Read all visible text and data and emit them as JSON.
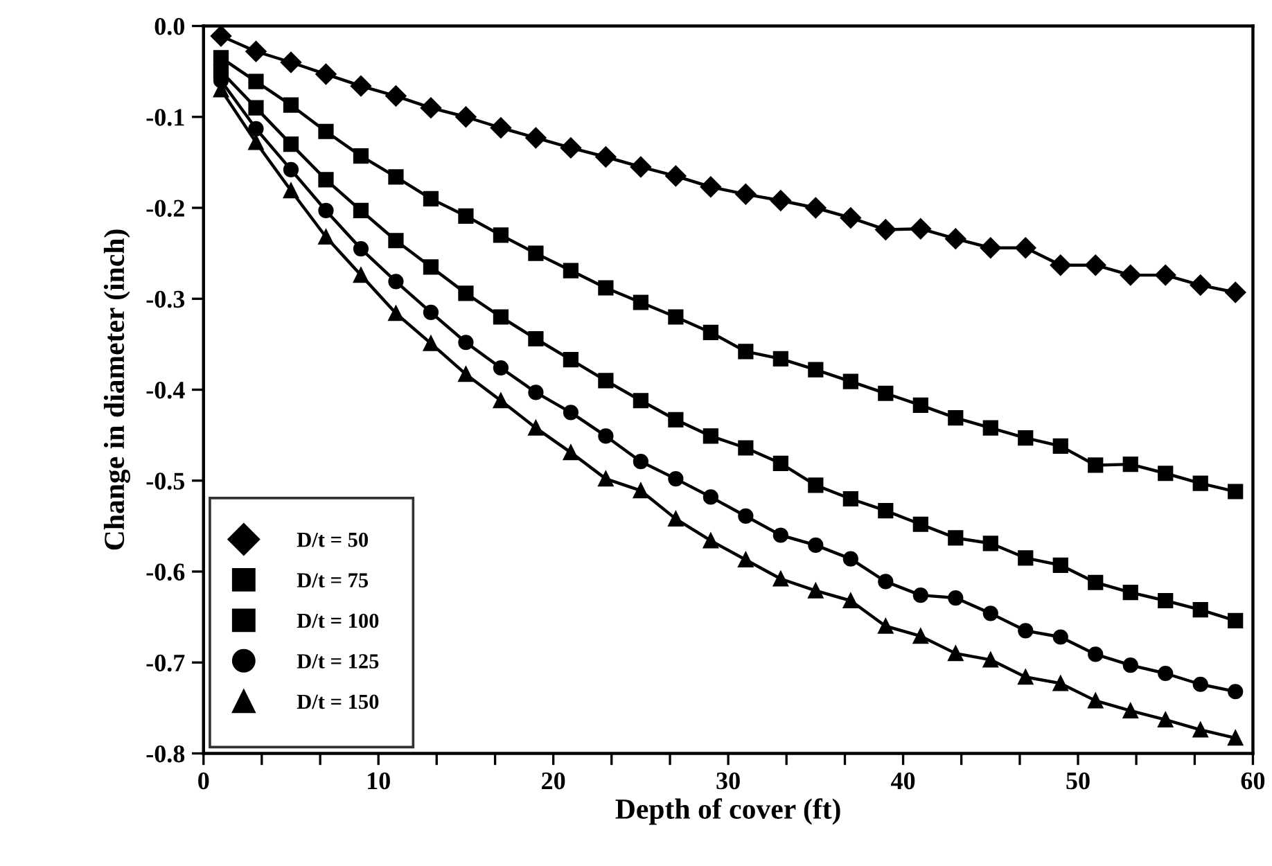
{
  "chart_data": {
    "type": "line",
    "xlabel": "Depth of cover (ft)",
    "ylabel": "Change in diameter (inch)",
    "x": [
      1,
      3,
      5,
      7,
      9,
      11,
      13,
      15,
      17,
      19,
      21,
      23,
      25,
      27,
      29,
      31,
      33,
      35,
      37,
      39,
      41,
      43,
      45,
      47,
      49,
      51,
      53,
      55,
      57,
      59
    ],
    "series": [
      {
        "name": "D/t = 50",
        "color": "#000000",
        "marker": "diamond",
        "values": [
          -0.011,
          -0.028,
          -0.04,
          -0.053,
          -0.066,
          -0.077,
          -0.09,
          -0.1,
          -0.112,
          -0.123,
          -0.134,
          -0.144,
          -0.155,
          -0.165,
          -0.177,
          -0.185,
          -0.192,
          -0.2,
          -0.211,
          -0.224,
          -0.223,
          -0.234,
          -0.244,
          -0.244,
          -0.263,
          -0.263,
          -0.274,
          -0.274,
          -0.285,
          -0.293
        ]
      },
      {
        "name": "D/t = 75",
        "color": "#000000",
        "marker": "square",
        "values": [
          -0.035,
          -0.061,
          -0.087,
          -0.116,
          -0.143,
          -0.166,
          -0.19,
          -0.209,
          -0.23,
          -0.25,
          -0.269,
          -0.288,
          -0.304,
          -0.32,
          -0.337,
          -0.358,
          -0.366,
          -0.378,
          -0.391,
          -0.404,
          -0.417,
          -0.431,
          -0.442,
          -0.453,
          -0.462,
          -0.483,
          -0.482,
          -0.492,
          -0.503,
          -0.512
        ]
      },
      {
        "name": "D/t = 100",
        "color": "#000000",
        "marker": "square",
        "values": [
          -0.05,
          -0.09,
          -0.13,
          -0.169,
          -0.203,
          -0.236,
          -0.265,
          -0.294,
          -0.32,
          -0.344,
          -0.367,
          -0.39,
          -0.412,
          -0.433,
          -0.451,
          -0.464,
          -0.481,
          -0.505,
          -0.52,
          -0.533,
          -0.548,
          -0.563,
          -0.569,
          -0.585,
          -0.593,
          -0.612,
          -0.623,
          -0.632,
          -0.642,
          -0.654
        ]
      },
      {
        "name": "D/t = 125",
        "color": "#000000",
        "marker": "circle",
        "values": [
          -0.06,
          -0.113,
          -0.158,
          -0.203,
          -0.245,
          -0.281,
          -0.315,
          -0.348,
          -0.376,
          -0.403,
          -0.425,
          -0.451,
          -0.479,
          -0.498,
          -0.518,
          -0.539,
          -0.56,
          -0.571,
          -0.586,
          -0.611,
          -0.626,
          -0.629,
          -0.646,
          -0.665,
          -0.672,
          -0.691,
          -0.703,
          -0.712,
          -0.724,
          -0.732
        ]
      },
      {
        "name": "D/t = 150",
        "color": "#000000",
        "marker": "triangle",
        "values": [
          -0.07,
          -0.128,
          -0.181,
          -0.232,
          -0.274,
          -0.316,
          -0.349,
          -0.383,
          -0.412,
          -0.442,
          -0.469,
          -0.498,
          -0.511,
          -0.542,
          -0.566,
          -0.587,
          -0.608,
          -0.621,
          -0.632,
          -0.66,
          -0.671,
          -0.69,
          -0.697,
          -0.716,
          -0.723,
          -0.742,
          -0.753,
          -0.763,
          -0.774,
          -0.783
        ]
      }
    ],
    "xlim": [
      0,
      60
    ],
    "xticks": [
      0,
      {
        "value": 3.33,
        "label": null
      },
      {
        "value": 6.67,
        "label": null
      },
      10,
      {
        "value": 13.33,
        "label": null
      },
      {
        "value": 16.67,
        "label": null
      },
      20,
      {
        "value": 23.33,
        "label": null
      },
      {
        "value": 26.67,
        "label": null
      },
      30,
      {
        "value": 33.33,
        "label": null
      },
      {
        "value": 36.67,
        "label": null
      },
      40,
      {
        "value": 43.33,
        "label": null
      },
      {
        "value": 46.67,
        "label": null
      },
      50,
      {
        "value": 53.33,
        "label": null
      },
      {
        "value": 56.67,
        "label": null
      },
      60
    ],
    "ylim": [
      -0.8,
      0
    ],
    "yticks": [
      {
        "value": 0,
        "label": "0.0"
      },
      {
        "value": -0.1,
        "label": "-0.1"
      },
      {
        "value": -0.2,
        "label": "-0.2"
      },
      {
        "value": -0.3,
        "label": "-0.3"
      },
      {
        "value": -0.4,
        "label": "-0.4"
      },
      {
        "value": -0.5,
        "label": "-0.5"
      },
      {
        "value": -0.6,
        "label": "-0.6"
      },
      {
        "value": -0.7,
        "label": "-0.7"
      },
      {
        "value": -0.8,
        "label": "-0.8"
      }
    ],
    "grid": false,
    "legend": "bottom left",
    "line_style": "solid"
  }
}
